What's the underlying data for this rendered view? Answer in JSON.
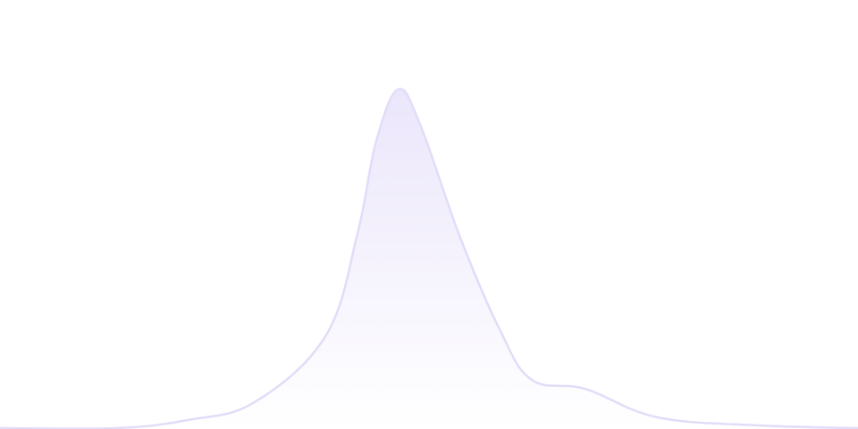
{
  "chart_data": {
    "type": "area",
    "title": "",
    "xlabel": "",
    "ylabel": "",
    "xlim": [
      0,
      100
    ],
    "ylim": [
      0,
      100
    ],
    "grid": false,
    "axes_visible": false,
    "legend": "none",
    "smooth": true,
    "series": [
      {
        "x": [
          0,
          13.5,
          21.9,
          29.7,
          38.0,
          41.7,
          43.8,
          46.4,
          49.0,
          53.6,
          58.3,
          62.0,
          68.2,
          76.6,
          88.5,
          100
        ],
        "y": [
          0,
          0,
          2.4,
          7.7,
          27.4,
          57.8,
          84.2,
          100,
          89.4,
          56.5,
          28.8,
          14.2,
          11.6,
          3.2,
          0.8,
          0
        ]
      }
    ],
    "colors": {
      "line": "#e2dcf8",
      "fill_top": "#ebe6fb",
      "fill_bottom": "#ffffff"
    }
  }
}
